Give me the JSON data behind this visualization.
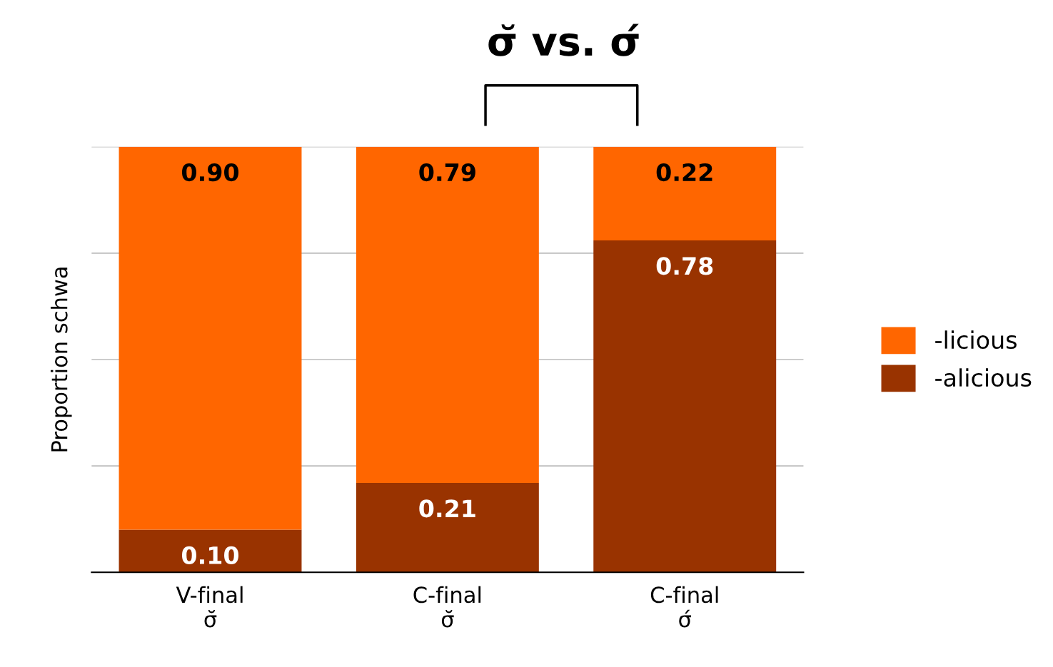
{
  "chart_data": {
    "type": "bar",
    "stacked": true,
    "title": "σ̆ vs. σ́",
    "ylabel": "Proportion schwa",
    "categories": [
      "V-final\nσ̆",
      "C-final\nσ̆",
      "C-final\nσ́"
    ],
    "series": [
      {
        "name": "-alicious",
        "color": "#993300",
        "values": [
          0.1,
          0.21,
          0.78
        ],
        "value_labels": [
          "0.10",
          "0.21",
          "0.78"
        ]
      },
      {
        "name": "-licious",
        "color": "#ff6600",
        "values": [
          0.9,
          0.79,
          0.22
        ],
        "value_labels": [
          "0.90",
          "0.79",
          "0.22"
        ]
      }
    ],
    "ylim": [
      0,
      1
    ],
    "yticks": [
      {
        "value": 0,
        "label": null
      },
      {
        "value": 0.25,
        "label": null
      },
      {
        "value": 0.5,
        "label": null
      },
      {
        "value": 0.75,
        "label": null
      },
      {
        "value": 1,
        "label": null
      }
    ],
    "tick_labels": "x",
    "grid": "y",
    "legend": "right"
  }
}
